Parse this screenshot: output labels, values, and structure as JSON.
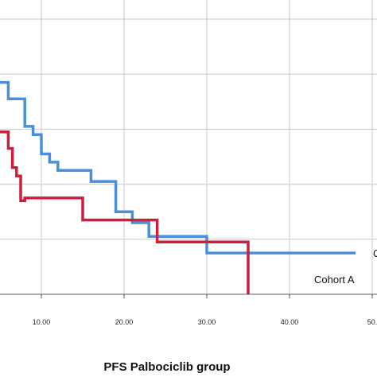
{
  "chart_data": {
    "type": "line",
    "subtype": "kaplan-meier step",
    "title": "",
    "xlabel": "PFS Palbociclib group",
    "ylabel": "",
    "xlim": [
      5,
      50
    ],
    "ylim": [
      0,
      1.0
    ],
    "x_ticks": [
      "10.00",
      "20.00",
      "30.00",
      "40.00",
      "50."
    ],
    "grid": true,
    "series": [
      {
        "label": "C",
        "color": "#4a8fd9",
        "points": [
          [
            5,
            0.77
          ],
          [
            6,
            0.77
          ],
          [
            6,
            0.71
          ],
          [
            8,
            0.71
          ],
          [
            8,
            0.61
          ],
          [
            9,
            0.61
          ],
          [
            9,
            0.58
          ],
          [
            10,
            0.58
          ],
          [
            10,
            0.51
          ],
          [
            11,
            0.51
          ],
          [
            11,
            0.48
          ],
          [
            12,
            0.48
          ],
          [
            12,
            0.45
          ],
          [
            16,
            0.45
          ],
          [
            16,
            0.41
          ],
          [
            19,
            0.41
          ],
          [
            19,
            0.3
          ],
          [
            21,
            0.3
          ],
          [
            21,
            0.26
          ],
          [
            23,
            0.26
          ],
          [
            23,
            0.21
          ],
          [
            30,
            0.21
          ],
          [
            30,
            0.15
          ],
          [
            48,
            0.15
          ]
        ]
      },
      {
        "label": "Cohort A",
        "color": "#cc1f3c",
        "points": [
          [
            5,
            0.59
          ],
          [
            6,
            0.59
          ],
          [
            6,
            0.53
          ],
          [
            6.5,
            0.53
          ],
          [
            6.5,
            0.46
          ],
          [
            7,
            0.46
          ],
          [
            7,
            0.43
          ],
          [
            7.5,
            0.43
          ],
          [
            7.5,
            0.34
          ],
          [
            8,
            0.34
          ],
          [
            8,
            0.35
          ],
          [
            15,
            0.35
          ],
          [
            15,
            0.27
          ],
          [
            24,
            0.27
          ],
          [
            24,
            0.19
          ],
          [
            35,
            0.19
          ],
          [
            35,
            0.0
          ]
        ]
      }
    ]
  }
}
